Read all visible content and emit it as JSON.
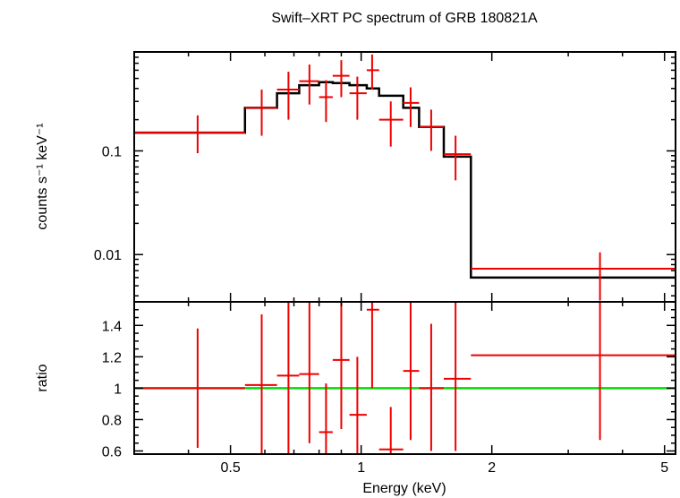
{
  "chart_data": [
    {
      "type": "line",
      "title": "Swift–XRT PC spectrum of GRB 180821A",
      "xlabel": "Energy (keV)",
      "ylabel": "counts s⁻¹ keV⁻¹",
      "x_scale": "log",
      "y_scale": "log",
      "xlim": [
        0.3,
        5.3
      ],
      "ylim": [
        0.0035,
        0.9
      ],
      "y_ticks": [
        {
          "value": 0.1,
          "label": "0.1"
        },
        {
          "value": 0.01,
          "label": "0.01"
        }
      ],
      "series": [
        {
          "kind": "model-step",
          "color": "#000000",
          "steps": [
            {
              "x0": 0.3,
              "x1": 0.54,
              "y": 0.15
            },
            {
              "x0": 0.54,
              "x1": 0.64,
              "y": 0.26
            },
            {
              "x0": 0.64,
              "x1": 0.72,
              "y": 0.36
            },
            {
              "x0": 0.72,
              "x1": 0.8,
              "y": 0.43
            },
            {
              "x0": 0.8,
              "x1": 0.86,
              "y": 0.46
            },
            {
              "x0": 0.86,
              "x1": 0.94,
              "y": 0.45
            },
            {
              "x0": 0.94,
              "x1": 1.03,
              "y": 0.43
            },
            {
              "x0": 1.03,
              "x1": 1.1,
              "y": 0.4
            },
            {
              "x0": 1.1,
              "x1": 1.25,
              "y": 0.34
            },
            {
              "x0": 1.25,
              "x1": 1.36,
              "y": 0.26
            },
            {
              "x0": 1.36,
              "x1": 1.55,
              "y": 0.17
            },
            {
              "x0": 1.55,
              "x1": 1.79,
              "y": 0.088
            },
            {
              "x0": 1.79,
              "x1": 5.3,
              "y": 0.006
            }
          ]
        },
        {
          "kind": "data-crosses",
          "color": "#ee0000",
          "points": [
            {
              "x": 0.42,
              "xlo": 0.3,
              "xhi": 0.54,
              "y": 0.15,
              "ylo": 0.095,
              "yhi": 0.22
            },
            {
              "x": 0.59,
              "xlo": 0.54,
              "xhi": 0.64,
              "y": 0.26,
              "ylo": 0.14,
              "yhi": 0.39
            },
            {
              "x": 0.68,
              "xlo": 0.64,
              "xhi": 0.72,
              "y": 0.39,
              "ylo": 0.2,
              "yhi": 0.58
            },
            {
              "x": 0.76,
              "xlo": 0.72,
              "xhi": 0.8,
              "y": 0.47,
              "ylo": 0.28,
              "yhi": 0.68
            },
            {
              "x": 0.83,
              "xlo": 0.8,
              "xhi": 0.86,
              "y": 0.33,
              "ylo": 0.19,
              "yhi": 0.48
            },
            {
              "x": 0.9,
              "xlo": 0.86,
              "xhi": 0.94,
              "y": 0.53,
              "ylo": 0.33,
              "yhi": 0.75
            },
            {
              "x": 0.98,
              "xlo": 0.94,
              "xhi": 1.03,
              "y": 0.36,
              "ylo": 0.2,
              "yhi": 0.52
            },
            {
              "x": 1.06,
              "xlo": 1.03,
              "xhi": 1.1,
              "y": 0.6,
              "ylo": 0.39,
              "yhi": 0.85
            },
            {
              "x": 1.17,
              "xlo": 1.1,
              "xhi": 1.25,
              "y": 0.2,
              "ylo": 0.11,
              "yhi": 0.3
            },
            {
              "x": 1.3,
              "xlo": 1.25,
              "xhi": 1.36,
              "y": 0.29,
              "ylo": 0.17,
              "yhi": 0.41
            },
            {
              "x": 1.45,
              "xlo": 1.36,
              "xhi": 1.55,
              "y": 0.17,
              "ylo": 0.1,
              "yhi": 0.25
            },
            {
              "x": 1.65,
              "xlo": 1.55,
              "xhi": 1.79,
              "y": 0.093,
              "ylo": 0.052,
              "yhi": 0.14
            },
            {
              "x": 3.55,
              "xlo": 1.79,
              "xhi": 5.3,
              "y": 0.0073,
              "ylo": 0.0036,
              "yhi": 0.0105
            }
          ]
        }
      ]
    },
    {
      "type": "line",
      "xlabel": "Energy (keV)",
      "ylabel": "ratio",
      "x_scale": "log",
      "y_scale": "linear",
      "xlim": [
        0.3,
        5.3
      ],
      "ylim": [
        0.58,
        1.55
      ],
      "x_ticks": [
        {
          "value": 0.5,
          "label": "0.5"
        },
        {
          "value": 1,
          "label": "1"
        },
        {
          "value": 2,
          "label": "2"
        },
        {
          "value": 5,
          "label": "5"
        }
      ],
      "y_ticks": [
        {
          "value": 0.6,
          "label": "0.6"
        },
        {
          "value": 0.8,
          "label": "0.8"
        },
        {
          "value": 1,
          "label": "1"
        },
        {
          "value": 1.2,
          "label": "1.2"
        },
        {
          "value": 1.4,
          "label": "1.4"
        }
      ],
      "reference_line": {
        "y": 1,
        "color": "#00dd00"
      },
      "series": [
        {
          "kind": "data-crosses",
          "color": "#ee0000",
          "points": [
            {
              "x": 0.42,
              "xlo": 0.3,
              "xhi": 0.54,
              "y": 1.0,
              "ylo": 0.62,
              "yhi": 1.38
            },
            {
              "x": 0.59,
              "xlo": 0.54,
              "xhi": 0.64,
              "y": 1.02,
              "ylo": 0.58,
              "yhi": 1.47
            },
            {
              "x": 0.68,
              "xlo": 0.64,
              "xhi": 0.72,
              "y": 1.08,
              "ylo": 0.58,
              "yhi": 1.55
            },
            {
              "x": 0.76,
              "xlo": 0.72,
              "xhi": 0.8,
              "y": 1.09,
              "ylo": 0.65,
              "yhi": 1.55
            },
            {
              "x": 0.83,
              "xlo": 0.8,
              "xhi": 0.86,
              "y": 0.72,
              "ylo": 0.58,
              "yhi": 1.03
            },
            {
              "x": 0.9,
              "xlo": 0.86,
              "xhi": 0.94,
              "y": 1.18,
              "ylo": 0.74,
              "yhi": 1.55
            },
            {
              "x": 0.98,
              "xlo": 0.94,
              "xhi": 1.03,
              "y": 0.83,
              "ylo": 0.58,
              "yhi": 1.2
            },
            {
              "x": 1.06,
              "xlo": 1.03,
              "xhi": 1.1,
              "y": 1.5,
              "ylo": 1.0,
              "yhi": 1.55
            },
            {
              "x": 1.17,
              "xlo": 1.1,
              "xhi": 1.25,
              "y": 0.61,
              "ylo": 0.58,
              "yhi": 0.88
            },
            {
              "x": 1.3,
              "xlo": 1.25,
              "xhi": 1.36,
              "y": 1.11,
              "ylo": 0.67,
              "yhi": 1.55
            },
            {
              "x": 1.45,
              "xlo": 1.36,
              "xhi": 1.55,
              "y": 1.0,
              "ylo": 0.6,
              "yhi": 1.41
            },
            {
              "x": 1.65,
              "xlo": 1.55,
              "xhi": 1.79,
              "y": 1.06,
              "ylo": 0.6,
              "yhi": 1.55
            },
            {
              "x": 3.55,
              "xlo": 1.79,
              "xhi": 5.3,
              "y": 1.21,
              "ylo": 0.67,
              "yhi": 1.55
            }
          ]
        }
      ]
    }
  ]
}
